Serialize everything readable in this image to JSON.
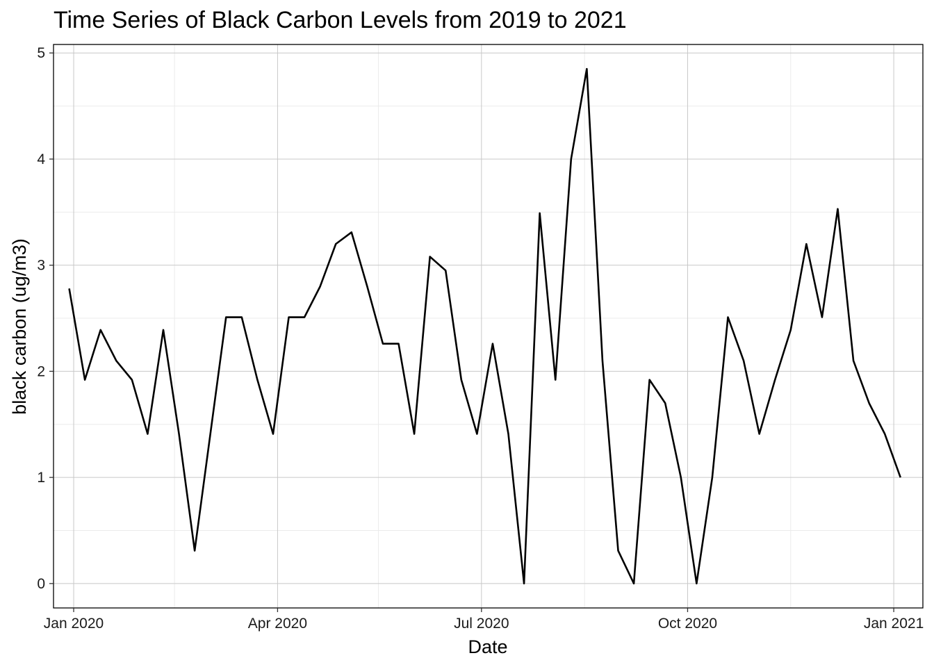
{
  "chart_data": {
    "type": "line",
    "title": "Time Series of Black Carbon Levels from 2019 to 2021",
    "xlabel": "Date",
    "ylabel": "black carbon (ug/m3)",
    "x_scale": "date",
    "xlim": [
      "2019-12-23",
      "2021-01-14"
    ],
    "ylim": [
      -0.23,
      5.08
    ],
    "x_ticks": [
      {
        "date": "2020-01-01",
        "label": "Jan 2020"
      },
      {
        "date": "2020-04-01",
        "label": "Apr 2020"
      },
      {
        "date": "2020-07-01",
        "label": "Jul 2020"
      },
      {
        "date": "2020-10-01",
        "label": "Oct 2020"
      },
      {
        "date": "2021-01-01",
        "label": "Jan 2021"
      }
    ],
    "x_minor_ticks": [
      "2020-02-15",
      "2020-05-16",
      "2020-08-16",
      "2020-11-16"
    ],
    "y_ticks": [
      0,
      1,
      2,
      3,
      4,
      5
    ],
    "y_minor_ticks": [
      0.5,
      1.5,
      2.5,
      3.5,
      4.5
    ],
    "grid": true,
    "line_color": "#000000",
    "series": [
      {
        "x": [
          "2019-12-30",
          "2020-01-06",
          "2020-01-13",
          "2020-01-20",
          "2020-01-27",
          "2020-02-03",
          "2020-02-10",
          "2020-02-17",
          "2020-02-24",
          "2020-03-02",
          "2020-03-09",
          "2020-03-16",
          "2020-03-23",
          "2020-03-30",
          "2020-04-06",
          "2020-04-13",
          "2020-04-20",
          "2020-04-27",
          "2020-05-04",
          "2020-05-11",
          "2020-05-18",
          "2020-05-25",
          "2020-06-01",
          "2020-06-08",
          "2020-06-15",
          "2020-06-22",
          "2020-06-29",
          "2020-07-06",
          "2020-07-13",
          "2020-07-20",
          "2020-07-27",
          "2020-08-03",
          "2020-08-10",
          "2020-08-17",
          "2020-08-24",
          "2020-08-31",
          "2020-09-07",
          "2020-09-14",
          "2020-09-21",
          "2020-09-28",
          "2020-10-05",
          "2020-10-12",
          "2020-10-19",
          "2020-10-26",
          "2020-11-02",
          "2020-11-09",
          "2020-11-16",
          "2020-11-23",
          "2020-11-30",
          "2020-12-07",
          "2020-12-14",
          "2020-12-21",
          "2020-12-28",
          "2021-01-04"
        ],
        "values": [
          2.78,
          1.92,
          2.39,
          2.1,
          1.92,
          1.41,
          2.39,
          1.41,
          0.31,
          1.41,
          2.51,
          2.51,
          1.92,
          1.41,
          2.51,
          2.51,
          2.8,
          3.2,
          3.31,
          2.8,
          2.26,
          2.26,
          1.41,
          3.08,
          2.95,
          1.92,
          1.41,
          2.26,
          1.41,
          0.0,
          3.49,
          1.92,
          4.0,
          4.85,
          2.1,
          0.31,
          0.0,
          1.92,
          1.7,
          1.0,
          0.0,
          1.0,
          2.51,
          2.1,
          1.41,
          1.92,
          2.39,
          3.2,
          2.51,
          3.53,
          2.1,
          1.7,
          1.41,
          1.0
        ]
      }
    ]
  }
}
